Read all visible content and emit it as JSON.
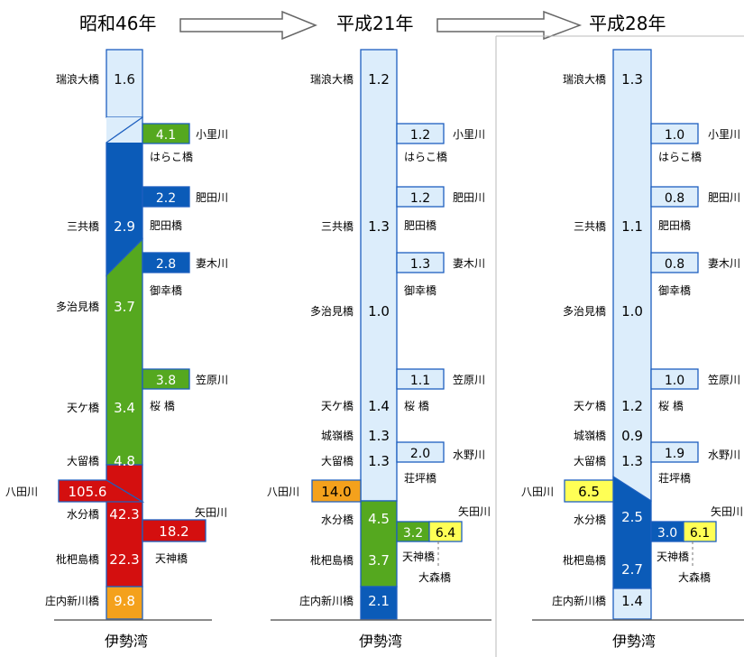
{
  "colors": {
    "light": "#dcedfb",
    "blue": "#0b5bb8",
    "green": "#55a81f",
    "red": "#d40f0f",
    "orange": "#f4a11c",
    "yellow": "#ffff55",
    "stroke": "#1d5fbf"
  },
  "periods": [
    "昭和46年",
    "平成21年",
    "平成28年"
  ],
  "bottom_label": "伊勢湾",
  "panel1": {
    "main_stations": [
      "瑞浪大橋",
      "三共橋",
      "多治見橋",
      "天ケ橋",
      "大留橋",
      "水分橋",
      "枇杷島橋",
      "庄内新川橋"
    ],
    "main_values": [
      "1.6",
      "2.9",
      "3.7",
      "3.4",
      "4.8",
      "42.3",
      "22.3",
      "9.8"
    ],
    "tribs": [
      {
        "value": "4.1",
        "river": "小里川",
        "bridge": "はらこ橋"
      },
      {
        "value": "2.2",
        "river": "肥田川",
        "bridge": "肥田橋"
      },
      {
        "value": "2.8",
        "river": "妻木川",
        "bridge": "御幸橋"
      },
      {
        "value": "3.8",
        "river": "笠原川",
        "bridge": "桜 橋"
      }
    ],
    "hatta": {
      "river": "八田川",
      "value": "105.6"
    },
    "yada": {
      "value": "18.2",
      "river": "矢田川",
      "bridge": "天神橋"
    }
  },
  "panel2": {
    "main_stations": [
      "瑞浪大橋",
      "三共橋",
      "多治見橋",
      "天ケ橋",
      "城嶺橋",
      "大留橋",
      "水分橋",
      "枇杷島橋",
      "庄内新川橋"
    ],
    "main_values": [
      "1.2",
      "1.3",
      "1.0",
      "1.4",
      "1.3",
      "1.3",
      "4.5",
      "3.7",
      "2.1"
    ],
    "tribs": [
      {
        "value": "1.2",
        "river": "小里川",
        "bridge": "はらこ橋"
      },
      {
        "value": "1.2",
        "river": "肥田川",
        "bridge": "肥田橋"
      },
      {
        "value": "1.3",
        "river": "妻木川",
        "bridge": "御幸橋"
      },
      {
        "value": "1.1",
        "river": "笠原川",
        "bridge": "桜 橋"
      },
      {
        "value": "2.0",
        "river": "水野川",
        "bridge": "荘坪橋"
      }
    ],
    "hatta": {
      "river": "八田川",
      "value": "14.0"
    },
    "yada": {
      "value1": "3.2",
      "value2": "6.4",
      "river": "矢田川",
      "bridge1": "天神橋",
      "bridge2": "大森橋"
    }
  },
  "panel3": {
    "main_stations": [
      "瑞浪大橋",
      "三共橋",
      "多治見橋",
      "天ケ橋",
      "城嶺橋",
      "大留橋",
      "水分橋",
      "枇杷島橋",
      "庄内新川橋"
    ],
    "main_values": [
      "1.3",
      "1.1",
      "1.0",
      "1.2",
      "0.9",
      "1.3",
      "2.5",
      "2.7",
      "1.4"
    ],
    "tribs": [
      {
        "value": "1.0",
        "river": "小里川",
        "bridge": "はらこ橋"
      },
      {
        "value": "0.8",
        "river": "肥田川",
        "bridge": "肥田橋"
      },
      {
        "value": "0.8",
        "river": "妻木川",
        "bridge": "御幸橋"
      },
      {
        "value": "1.0",
        "river": "笠原川",
        "bridge": "桜 橋"
      },
      {
        "value": "1.9",
        "river": "水野川",
        "bridge": "荘坪橋"
      }
    ],
    "hatta": {
      "river": "八田川",
      "value": "6.5"
    },
    "yada": {
      "value1": "3.0",
      "value2": "6.1",
      "river": "矢田川",
      "bridge1": "天神橋",
      "bridge2": "大森橋"
    }
  }
}
